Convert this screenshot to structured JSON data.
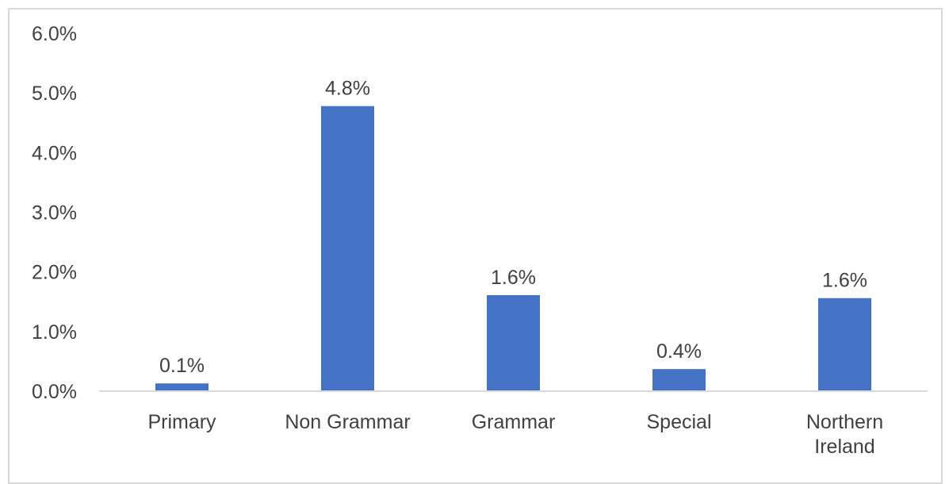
{
  "chart_data": {
    "type": "bar",
    "title": "",
    "xlabel": "",
    "ylabel": "",
    "categories": [
      "Primary",
      "Non Grammar",
      "Grammar",
      "Special",
      "Northern Ireland"
    ],
    "category_lines": [
      [
        "Primary"
      ],
      [
        "Non Grammar"
      ],
      [
        "Grammar"
      ],
      [
        "Special"
      ],
      [
        "Northern",
        "Ireland"
      ]
    ],
    "values": [
      0.13,
      4.78,
      1.61,
      0.37,
      1.56
    ],
    "data_labels": [
      "0.1%",
      "4.8%",
      "1.6%",
      "0.4%",
      "1.6%"
    ],
    "ylim": [
      0,
      6
    ],
    "yticks": [
      0,
      1,
      2,
      3,
      4,
      5,
      6
    ],
    "ytick_labels": [
      "0.0%",
      "1.0%",
      "2.0%",
      "3.0%",
      "4.0%",
      "5.0%",
      "6.0%"
    ],
    "grid": false,
    "legend": false,
    "bar_color": "#4472c4",
    "text_color": "#404040",
    "axis_color": "#d9d9d9"
  }
}
